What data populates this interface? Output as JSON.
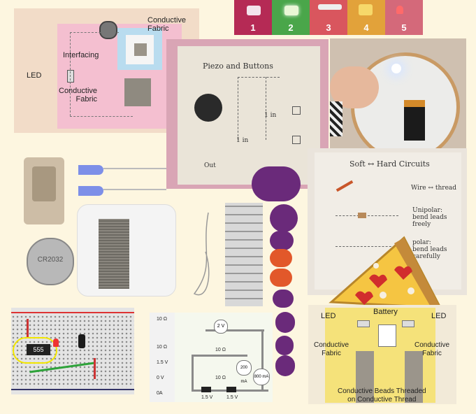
{
  "collage": {
    "led_strip": {
      "numbers": [
        "1",
        "2",
        "3",
        "4",
        "5"
      ]
    },
    "felt_panel": {
      "labels": {
        "conductive_fabric_top": "Conductive\nFabric",
        "interfacing": "Interfacing",
        "led": "LED",
        "conductive_fabric_bottom": "Conductive\nFabric"
      }
    },
    "piezo_panel": {
      "title": "Piezo and Buttons",
      "notes": {
        "in_a": "1 in",
        "in_b": "1 in",
        "out": "Out"
      }
    },
    "soft_circuits_panel": {
      "title": "Soft ↔ Hard Circuits",
      "notes": {
        "wire": "Wire ↔ thread",
        "unipolar": "Unipolar:\nbend leads\nfreely",
        "polar": "polar:\nbend leads\ncarefully"
      }
    },
    "battery_coin": {
      "text": "CR2032"
    },
    "breadboard": {
      "chip": "555"
    },
    "circuit_sim": {
      "left_labels": [
        "10 Ω",
        "",
        "10 Ω",
        "1.5 V",
        "0 V",
        "0A"
      ],
      "resistor_top": "10 Ω",
      "resistor_bottom": "10 Ω",
      "battery_left": "1.5 V",
      "battery_right": "1.5 V",
      "voltmeter": "2 V",
      "ammeter_a": "200 mA",
      "ammeter_b": "800 mA"
    },
    "pizza_panel": {
      "labels": {
        "led_left": "LED",
        "battery": "Battery",
        "led_right": "LED",
        "fabric_left": "Conductive\nFabric",
        "fabric_right": "Conductive\nFabric",
        "beads": "Conductive Beads Threaded\non Conductive Thread"
      }
    }
  },
  "colors": {
    "background": "#fdf6e0",
    "pink_felt": "#f4bfd0",
    "blue_felt": "#b9dcef",
    "magenta": "#c02a5a",
    "purple_board": "#6a2a7a",
    "pizza_yellow": "#f5c542",
    "muslin": "#eae4d8"
  }
}
